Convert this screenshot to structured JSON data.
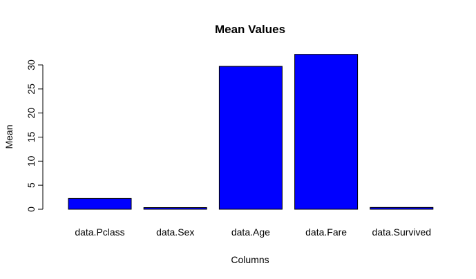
{
  "chart_data": {
    "type": "bar",
    "title": "Mean Values",
    "xlabel": "Columns",
    "ylabel": "Mean",
    "categories": [
      "data.Pclass",
      "data.Sex",
      "data.Age",
      "data.Fare",
      "data.Survived"
    ],
    "values": [
      2.24,
      0.35,
      29.7,
      32.2,
      0.38
    ],
    "ylim": [
      0,
      30
    ],
    "yticks": [
      "0",
      "5",
      "10",
      "15",
      "20",
      "25",
      "30"
    ],
    "bar_color": "#0000ff",
    "grid": false,
    "legend": "none"
  }
}
